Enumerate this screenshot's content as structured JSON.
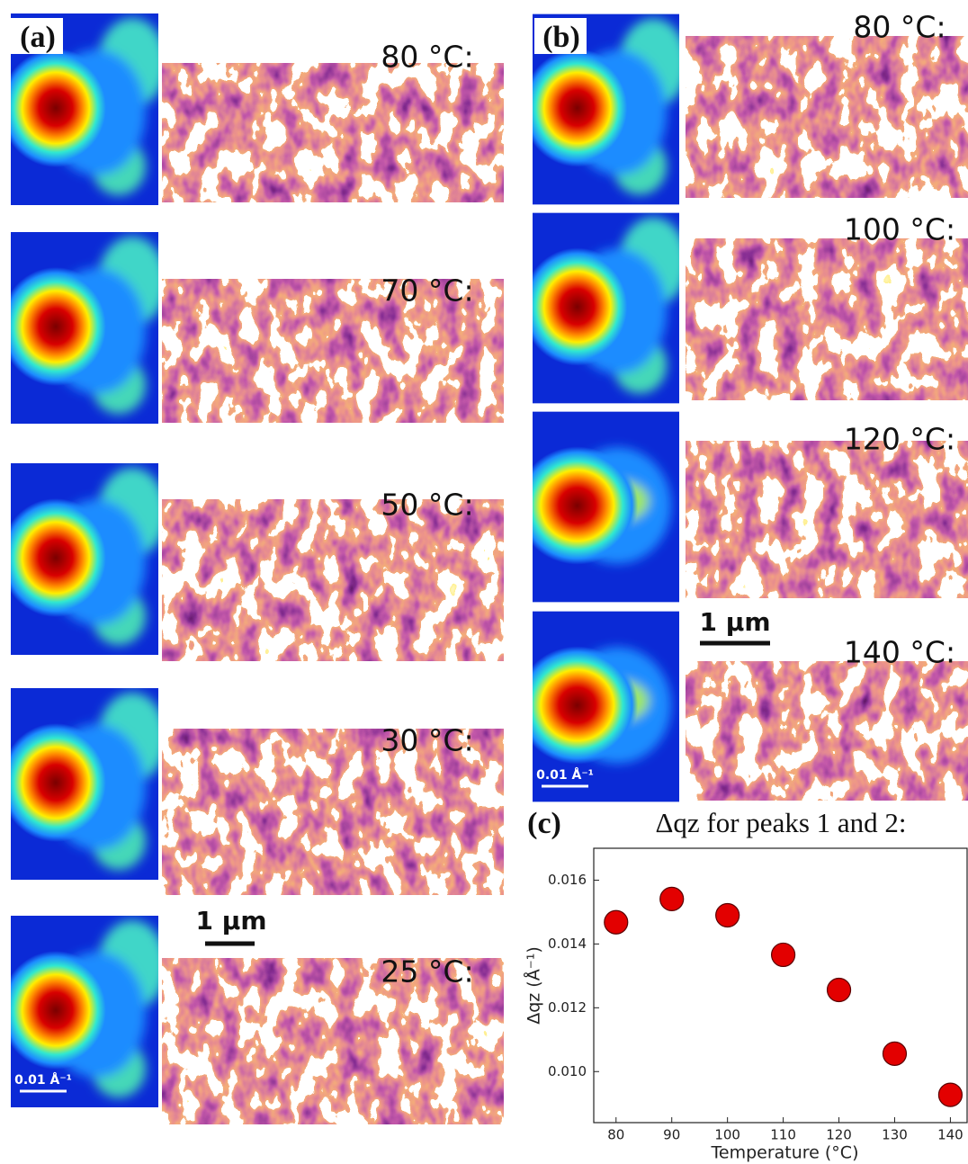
{
  "figure": {
    "panels": [
      {
        "label": "(a)",
        "temperatures": [
          "80 °C:",
          "70 °C:",
          "50 °C:",
          "30 °C:",
          "25 °C:"
        ],
        "scale_bar": "1 µm",
        "q_scale": "0.01 Å⁻¹"
      },
      {
        "label": "(b)",
        "temperatures": [
          "80 °C:",
          "100 °C:",
          "120 °C:",
          "140 °C:"
        ],
        "scale_bar": "1 µm",
        "q_scale": "0.01 Å⁻¹"
      },
      {
        "label": "(c)"
      }
    ]
  },
  "chart_data": {
    "type": "scatter",
    "title": "Δqz for peaks 1 and 2:",
    "x_label": "Temperature (°C)",
    "y_label": "Δqz (Å⁻¹)",
    "x": [
      80,
      90,
      100,
      110,
      120,
      130,
      140
    ],
    "values": [
      0.01468,
      0.01541,
      0.0149,
      0.01366,
      0.01256,
      0.01056,
      0.00927
    ],
    "color": "#e30000",
    "xlim": [
      76,
      143
    ],
    "xticks": [
      80,
      90,
      100,
      110,
      120,
      130,
      140
    ],
    "ylim": [
      0.0084,
      0.017
    ],
    "yticks": [
      {
        "value": 0.01,
        "label": "0.010"
      },
      0.012,
      0.014,
      0.016
    ]
  }
}
